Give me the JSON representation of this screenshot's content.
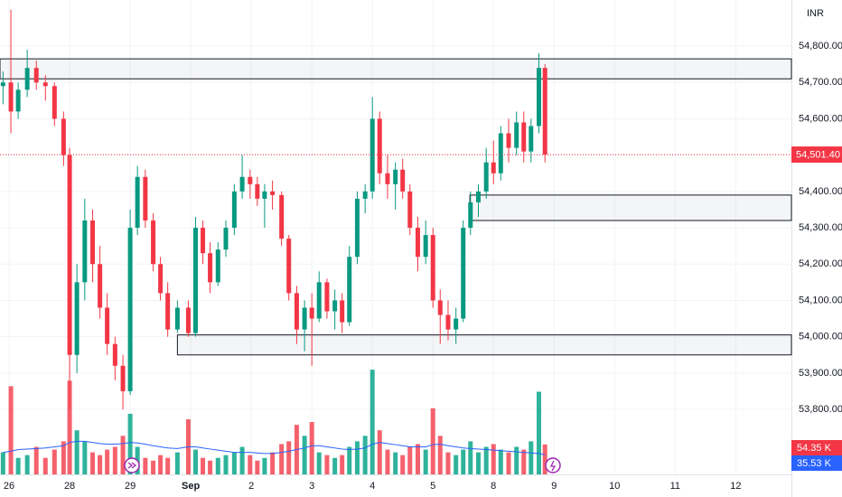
{
  "chart_data": {
    "type": "candlestick",
    "currency": "INR",
    "up_color": "#089981",
    "down_color": "#f23645",
    "volume_up_color": "#2fb39b",
    "volume_down_color": "#f4616d",
    "volume_ma_color": "#2962ff",
    "grid": true,
    "xlim": [
      -0.15,
      12.92
    ],
    "ylim": [
      53621,
      54927
    ],
    "volume_lim": [
      0,
      200
    ],
    "xticks": [
      {
        "value": 0,
        "label": "26"
      },
      {
        "value": 1,
        "label": "28"
      },
      {
        "value": 2,
        "label": "29"
      },
      {
        "value": 3,
        "label": "Sep"
      },
      {
        "value": 4,
        "label": "2"
      },
      {
        "value": 5,
        "label": "3"
      },
      {
        "value": 6,
        "label": "4"
      },
      {
        "value": 7,
        "label": "5"
      },
      {
        "value": 8,
        "label": "8"
      },
      {
        "value": 9,
        "label": "9"
      },
      {
        "value": 10,
        "label": "10"
      },
      {
        "value": 11,
        "label": "11"
      },
      {
        "value": 12,
        "label": "12"
      }
    ],
    "yticks": [
      {
        "value": 53800,
        "label": "53,800.00"
      },
      {
        "value": 53900,
        "label": "53,900.00"
      },
      {
        "value": 54000,
        "label": "54,000.00"
      },
      {
        "value": 54100,
        "label": "54,100.00"
      },
      {
        "value": 54200,
        "label": "54,200.00"
      },
      {
        "value": 54300,
        "label": "54,300.00"
      },
      {
        "value": 54400,
        "label": "54,400.00"
      },
      {
        "value": 54500,
        "label": "54,500.00"
      },
      {
        "value": 54600,
        "label": "54,600.00"
      },
      {
        "value": 54700,
        "label": "54,700.00"
      },
      {
        "value": 54800,
        "label": "54,800.00"
      }
    ],
    "zones": [
      {
        "x0": -0.15,
        "y0": 54710,
        "y1": 54765
      },
      {
        "x0": 7.61,
        "y0": 54320,
        "y1": 54390
      },
      {
        "x0": 2.78,
        "y0": 53950,
        "y1": 54005
      }
    ],
    "x": [
      -0.1,
      0.03,
      0.15,
      0.3,
      0.45,
      0.6,
      0.75,
      0.9,
      1.0,
      1.12,
      1.25,
      1.38,
      1.5,
      1.62,
      1.75,
      1.88,
      2.0,
      2.12,
      2.25,
      2.38,
      2.5,
      2.62,
      2.78,
      2.96,
      3.08,
      3.2,
      3.32,
      3.45,
      3.58,
      3.72,
      3.85,
      3.98,
      4.1,
      4.22,
      4.35,
      4.5,
      4.62,
      4.75,
      4.88,
      5.0,
      5.12,
      5.25,
      5.38,
      5.5,
      5.62,
      5.75,
      5.88,
      6.0,
      6.12,
      6.25,
      6.38,
      6.5,
      6.62,
      6.75,
      6.88,
      7.0,
      7.12,
      7.25,
      7.38,
      7.5,
      7.62,
      7.75,
      7.88,
      8.0,
      8.12,
      8.25,
      8.38,
      8.5,
      8.62,
      8.75,
      8.85
    ],
    "open": [
      54690,
      54700,
      54620,
      54680,
      54740,
      54700,
      54690,
      54600,
      54500,
      53950,
      54150,
      54320,
      54200,
      54080,
      53980,
      53920,
      53850,
      54300,
      54440,
      54320,
      54200,
      54120,
      54020,
      54080,
      54010,
      54300,
      54230,
      54150,
      54240,
      54300,
      54400,
      54440,
      54420,
      54380,
      54400,
      54390,
      54270,
      54120,
      54020,
      54080,
      54050,
      54150,
      54070,
      54100,
      54040,
      54220,
      54380,
      54400,
      54600,
      54450,
      54420,
      54460,
      54400,
      54300,
      54220,
      54280,
      54100,
      54060,
      54020,
      54050,
      54300,
      54370,
      54400,
      54480,
      54450,
      54560,
      54520,
      54590,
      54510,
      54580,
      54740
    ],
    "high": [
      54730,
      54900,
      54700,
      54790,
      54760,
      54720,
      54700,
      54620,
      54520,
      54200,
      54380,
      54350,
      54250,
      54120,
      54000,
      53950,
      54350,
      54470,
      54460,
      54340,
      54220,
      54150,
      54100,
      54100,
      54330,
      54320,
      54260,
      54260,
      54320,
      54420,
      54500,
      54460,
      54440,
      54420,
      54430,
      54400,
      54280,
      54140,
      54100,
      54120,
      54180,
      54160,
      54130,
      54120,
      54250,
      54400,
      54420,
      54660,
      54620,
      54500,
      54480,
      54490,
      54420,
      54330,
      54320,
      54300,
      54130,
      54100,
      54080,
      54320,
      54400,
      54420,
      54520,
      54540,
      54580,
      54600,
      54620,
      54620,
      54600,
      54780,
      54750
    ],
    "low": [
      54640,
      54560,
      54600,
      54660,
      54680,
      54650,
      54580,
      54470,
      53800,
      53900,
      54100,
      54150,
      54050,
      53950,
      53880,
      53800,
      53840,
      54280,
      54300,
      54180,
      54100,
      54000,
      54010,
      54000,
      54000,
      54200,
      54120,
      54140,
      54220,
      54280,
      54380,
      54380,
      54360,
      54300,
      54350,
      54250,
      54100,
      53980,
      53960,
      53920,
      54040,
      54050,
      54020,
      54010,
      54030,
      54200,
      54340,
      54380,
      54420,
      54380,
      54350,
      54380,
      54280,
      54180,
      54200,
      54080,
      53980,
      53990,
      53980,
      54040,
      54280,
      54330,
      54380,
      54420,
      54430,
      54480,
      54500,
      54480,
      54480,
      54560,
      54480
    ],
    "close": [
      54700,
      54620,
      54680,
      54740,
      54700,
      54690,
      54600,
      54500,
      53950,
      54150,
      54320,
      54200,
      54080,
      53980,
      53920,
      53850,
      54300,
      54440,
      54320,
      54200,
      54120,
      54020,
      54080,
      54010,
      54300,
      54230,
      54150,
      54240,
      54300,
      54400,
      54440,
      54420,
      54380,
      54400,
      54390,
      54270,
      54120,
      54020,
      54080,
      54050,
      54150,
      54070,
      54100,
      54040,
      54220,
      54380,
      54400,
      54600,
      54450,
      54420,
      54460,
      54400,
      54300,
      54220,
      54280,
      54100,
      54060,
      54020,
      54050,
      54300,
      54370,
      54400,
      54480,
      54450,
      54560,
      54520,
      54590,
      54510,
      54580,
      54740,
      54501.4
    ],
    "volume": [
      40,
      160,
      30,
      35,
      50,
      30,
      45,
      60,
      170,
      80,
      60,
      40,
      35,
      45,
      50,
      70,
      110,
      50,
      30,
      25,
      35,
      30,
      40,
      100,
      45,
      30,
      25,
      30,
      35,
      40,
      50,
      35,
      25,
      30,
      40,
      55,
      60,
      90,
      70,
      95,
      40,
      35,
      30,
      35,
      50,
      60,
      70,
      190,
      80,
      45,
      40,
      35,
      50,
      55,
      45,
      120,
      70,
      40,
      35,
      45,
      60,
      40,
      50,
      55,
      45,
      40,
      50,
      45,
      60,
      150,
      54.35
    ],
    "volume_ma": [
      40,
      42,
      45,
      46,
      47,
      48,
      50,
      52,
      58,
      60,
      60,
      58,
      56,
      55,
      55,
      56,
      58,
      57,
      55,
      52,
      50,
      48,
      47,
      50,
      50,
      48,
      46,
      44,
      42,
      40,
      40,
      40,
      39,
      38,
      38,
      40,
      42,
      45,
      48,
      52,
      52,
      50,
      48,
      46,
      45,
      46,
      48,
      55,
      58,
      56,
      54,
      52,
      50,
      50,
      50,
      54,
      55,
      52,
      50,
      48,
      47,
      46,
      45,
      44,
      43,
      42,
      41,
      40,
      39,
      38,
      35.53
    ],
    "last_price_label": "54,501.40",
    "volume_last_label": "54.35 K",
    "volume_ma_last_label": "35.53 K"
  }
}
